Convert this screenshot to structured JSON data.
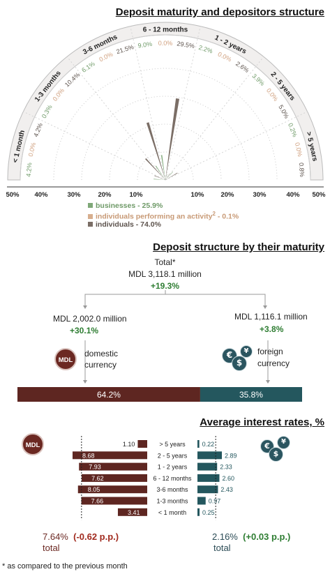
{
  "chart_data": [
    {
      "type": "radial_bar",
      "title": "Deposit maturity and depositors structure",
      "categories": [
        "< 1 month",
        "1-3 months",
        "3-6 months",
        "6 - 12 months",
        "1 - 2 years",
        "2 - 5 years",
        "> 5 years"
      ],
      "series": [
        {
          "name": "businesses - 25.9%",
          "color": "#7fa878",
          "values": [
            4.2,
            0.3,
            6.1,
            9.0,
            2.2,
            3.9,
            0.2
          ]
        },
        {
          "name": "individuals performing an activity",
          "color": "#d7ae8e",
          "values": [
            0.0,
            0.0,
            0.0,
            0.0,
            0.0,
            0.0,
            0.0
          ]
        },
        {
          "name": "individuals - 74.0%",
          "color": "#7b6e66",
          "values": [
            4.2,
            10.4,
            21.5,
            29.5,
            2.6,
            5.0,
            0.8
          ]
        }
      ],
      "legend_superscript": "2",
      "legend_suffix": " - 0.1%",
      "tick_labels": [
        "50%",
        "40%",
        "30%",
        "20%",
        "10%",
        "10%",
        "20%",
        "30%",
        "40%",
        "50%"
      ]
    },
    {
      "type": "stacked_bar",
      "title": "Deposit structure by their maturity",
      "total_label": "Total*",
      "total_value": "MDL 3,118.1 million",
      "total_change": "+19.3%",
      "domestic_value": "MDL 2,002.0 million",
      "domestic_change": "+30.1%",
      "domestic_label": "domestic currency",
      "foreign_value": "MDL 1,116.1 million",
      "foreign_change": "+3.8%",
      "foreign_label": "foreign currency",
      "categories": [
        "domestic currency",
        "foreign currency"
      ],
      "values": [
        64.2,
        35.8
      ],
      "value_labels": [
        "64.2%",
        "35.8%"
      ],
      "colors": [
        "#5e2621",
        "#24575e"
      ]
    },
    {
      "type": "bar",
      "title": "Average interest rates, %",
      "categories": [
        "> 5 years",
        "2 - 5 years",
        "1 - 2 years",
        "6 - 12 months",
        "3-6 months",
        "1-3 months",
        "< 1 month"
      ],
      "series": [
        {
          "name": "MDL",
          "color": "#5e2621",
          "values": [
            1.1,
            8.68,
            7.93,
            7.62,
            8.05,
            7.66,
            3.41
          ],
          "labels": [
            "1.10",
            "8.68",
            "7.93",
            "7.62",
            "8.05",
            "7.66",
            "3.41"
          ],
          "avg": 7.64
        },
        {
          "name": "foreign currency",
          "color": "#24575e",
          "values": [
            0.22,
            2.89,
            2.33,
            2.6,
            2.43,
            0.97,
            0.25
          ],
          "labels": [
            "0.22",
            "2.89",
            "2.33",
            "2.60",
            "2.43",
            "0.97",
            "0.25"
          ],
          "avg": 2.16
        }
      ],
      "mdl_total": "7.64%",
      "mdl_change": "(-0.62 p.p.)",
      "fx_total": "2.16%",
      "fx_change": "(+0.03 p.p.)",
      "total_word": "total"
    }
  ],
  "badges": {
    "mdl": "MDL",
    "euro": "€",
    "dollar": "$",
    "yen": "¥"
  },
  "footnote": "* as compared to the previous month"
}
